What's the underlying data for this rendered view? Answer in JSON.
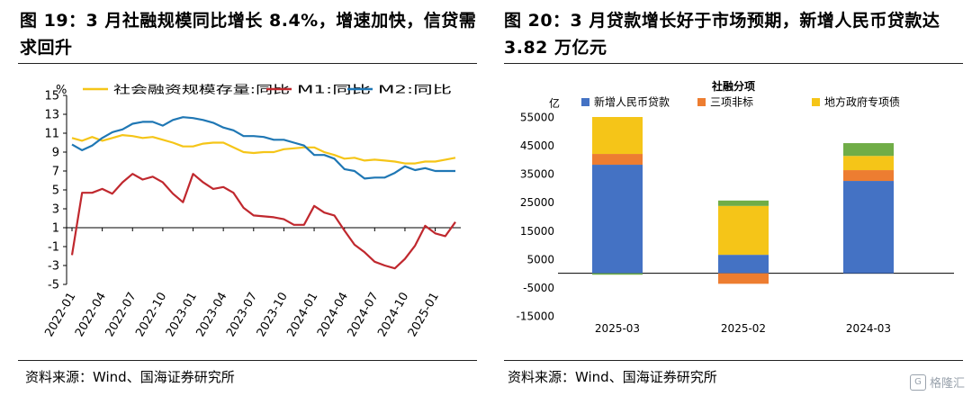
{
  "panels": {
    "left": {
      "title": "图 19：3 月社融规模同比增长 8.4%，增速加快，信贷需求回升",
      "source": "资料来源：Wind、国海证券研究所"
    },
    "right": {
      "title": "图 20：3 月贷款增长好于市场预期，新增人民币贷款达 3.82 万亿元",
      "source": "资料来源：Wind、国海证券研究所"
    }
  },
  "watermark": "格隆汇",
  "chart_data": [
    {
      "type": "line",
      "ylabel": "%",
      "ylim": [
        -5,
        15
      ],
      "yticks": [
        -5,
        -3,
        -1,
        1,
        3,
        5,
        7,
        9,
        11,
        13,
        15
      ],
      "xtick_labels": [
        "2022-01",
        "2022-04",
        "2022-07",
        "2022-10",
        "2023-01",
        "2023-04",
        "2023-07",
        "2023-10",
        "2024-01",
        "2024-04",
        "2024-07",
        "2024-10",
        "2025-01"
      ],
      "x_start": "2022-01",
      "series": [
        {
          "name": "社会融资规模存量:同比",
          "color": "#f5c518",
          "values": [
            10.5,
            10.2,
            10.6,
            10.2,
            10.5,
            10.8,
            10.7,
            10.5,
            10.6,
            10.3,
            10.0,
            9.6,
            9.6,
            9.9,
            10.0,
            10.0,
            9.5,
            9.0,
            8.9,
            9.0,
            9.0,
            9.3,
            9.4,
            9.5,
            9.5,
            9.0,
            8.7,
            8.3,
            8.4,
            8.1,
            8.2,
            8.1,
            8.0,
            7.8,
            7.8,
            8.0,
            8.0,
            8.2,
            8.4
          ]
        },
        {
          "name": "M1:同比",
          "color": "#c0282e",
          "values": [
            -1.9,
            4.7,
            4.7,
            5.1,
            4.6,
            5.8,
            6.7,
            6.1,
            6.4,
            5.8,
            4.6,
            3.7,
            6.7,
            5.8,
            5.1,
            5.3,
            4.7,
            3.1,
            2.3,
            2.2,
            2.1,
            1.9,
            1.3,
            1.3,
            3.3,
            2.6,
            2.3,
            0.7,
            -0.8,
            -1.6,
            -2.6,
            -3.0,
            -3.3,
            -2.3,
            -0.9,
            1.2,
            0.4,
            0.1,
            1.6
          ]
        },
        {
          "name": "M2:同比",
          "color": "#1f77b4",
          "values": [
            9.8,
            9.2,
            9.7,
            10.5,
            11.1,
            11.4,
            12.0,
            12.2,
            12.2,
            11.8,
            12.4,
            12.7,
            12.6,
            12.4,
            12.1,
            11.6,
            11.3,
            10.7,
            10.7,
            10.6,
            10.3,
            10.3,
            10.0,
            9.7,
            8.7,
            8.7,
            8.3,
            7.2,
            7.0,
            6.2,
            6.3,
            6.3,
            6.8,
            7.5,
            7.1,
            7.3,
            7.0,
            7.0,
            7.0
          ]
        }
      ]
    },
    {
      "type": "bar",
      "stacked": true,
      "title": "社融分项",
      "ylabel": "亿",
      "ylim": [
        -15000,
        55000
      ],
      "yticks": [
        -15000,
        -5000,
        5000,
        15000,
        25000,
        35000,
        45000,
        55000
      ],
      "categories": [
        "2025-03",
        "2025-02",
        "2024-03"
      ],
      "series": [
        {
          "name": "新增人民币贷款",
          "color": "#4472c4",
          "values": [
            38200,
            6500,
            32500
          ]
        },
        {
          "name": "三项非标",
          "color": "#ed7d31",
          "values": [
            3800,
            -3700,
            3800
          ]
        },
        {
          "name": "地方政府专项债",
          "color": "#f5c518",
          "values": [
            13000,
            17200,
            5000
          ]
        },
        {
          "name": "",
          "color": "#70ad47",
          "values": [
            -500,
            1900,
            4500
          ]
        }
      ]
    }
  ]
}
